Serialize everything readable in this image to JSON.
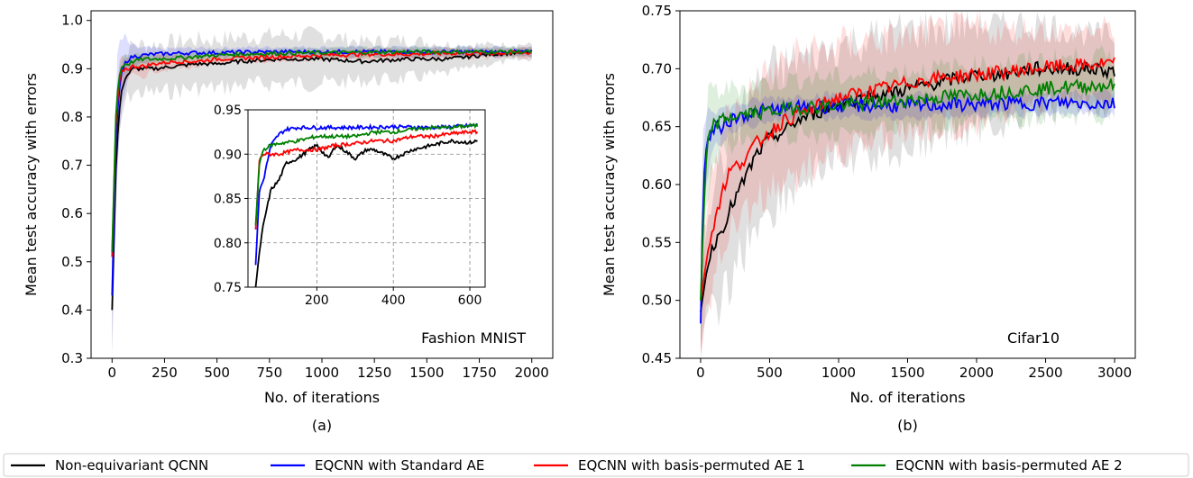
{
  "series_colors": {
    "non_equivariant": "#000000",
    "standard_ae": "#0000ff",
    "basis_permuted_ae1": "#ff0000",
    "basis_permuted_ae2": "#008000"
  },
  "legend": {
    "placement": "bottom",
    "entries": [
      {
        "label": "Non-equivariant QCNN",
        "key": "non_equivariant"
      },
      {
        "label": "EQCNN with Standard AE",
        "key": "standard_ae"
      },
      {
        "label": "EQCNN with basis-permuted AE 1",
        "key": "basis_permuted_ae1"
      },
      {
        "label": "EQCNN with basis-permuted AE 2",
        "key": "basis_permuted_ae2"
      }
    ]
  },
  "chart_data": [
    {
      "type": "line",
      "panel_label": "(a)",
      "annotation": "Fashion MNIST",
      "xlabel": "No. of iterations",
      "ylabel": "Mean test accuracy with errors",
      "xlim": [
        -100,
        2100
      ],
      "ylim": [
        0.3,
        1.02
      ],
      "xticks": [
        0,
        250,
        500,
        750,
        1000,
        1250,
        1500,
        1750,
        2000
      ],
      "yticks": [
        0.3,
        0.4,
        0.5,
        0.6,
        0.7,
        0.8,
        0.9,
        1.0
      ],
      "grid": false,
      "series": [
        {
          "key": "non_equivariant",
          "x": [
            0,
            20,
            40,
            60,
            80,
            100,
            150,
            200,
            300,
            400,
            500,
            600,
            800,
            1000,
            1200,
            1400,
            1600,
            1800,
            2000
          ],
          "y": [
            0.4,
            0.72,
            0.84,
            0.88,
            0.89,
            0.9,
            0.9,
            0.9,
            0.905,
            0.91,
            0.91,
            0.915,
            0.92,
            0.92,
            0.915,
            0.92,
            0.92,
            0.93,
            0.935
          ],
          "band": [
            0.1,
            0.08,
            0.06,
            0.05,
            0.05,
            0.05,
            0.05,
            0.05,
            0.05,
            0.05,
            0.05,
            0.05,
            0.05,
            0.05,
            0.04,
            0.04,
            0.03,
            0.02,
            0.015
          ]
        },
        {
          "key": "standard_ae",
          "x": [
            0,
            20,
            40,
            60,
            80,
            100,
            150,
            200,
            300,
            400,
            500,
            600,
            800,
            1000,
            1200,
            1400,
            1600,
            1800,
            2000
          ],
          "y": [
            0.43,
            0.78,
            0.88,
            0.91,
            0.92,
            0.925,
            0.928,
            0.93,
            0.932,
            0.933,
            0.933,
            0.934,
            0.935,
            0.935,
            0.935,
            0.935,
            0.935,
            0.935,
            0.935
          ],
          "band": [
            0.12,
            0.1,
            0.08,
            0.05,
            0.03,
            0.02,
            0.015,
            0.012,
            0.01,
            0.01,
            0.01,
            0.01,
            0.01,
            0.01,
            0.01,
            0.01,
            0.01,
            0.01,
            0.01
          ]
        },
        {
          "key": "basis_permuted_ae1",
          "x": [
            0,
            20,
            40,
            60,
            80,
            100,
            150,
            200,
            300,
            400,
            500,
            600,
            800,
            1000,
            1200,
            1400,
            1600,
            1800,
            2000
          ],
          "y": [
            0.51,
            0.81,
            0.89,
            0.9,
            0.9,
            0.905,
            0.905,
            0.91,
            0.915,
            0.915,
            0.92,
            0.922,
            0.925,
            0.928,
            0.93,
            0.93,
            0.932,
            0.932,
            0.933
          ],
          "band": [
            0.06,
            0.05,
            0.04,
            0.03,
            0.02,
            0.02,
            0.02,
            0.015,
            0.015,
            0.012,
            0.012,
            0.01,
            0.01,
            0.01,
            0.01,
            0.01,
            0.01,
            0.01,
            0.01
          ]
        },
        {
          "key": "basis_permuted_ae2",
          "x": [
            0,
            20,
            40,
            60,
            80,
            100,
            150,
            200,
            300,
            400,
            500,
            600,
            800,
            1000,
            1200,
            1400,
            1600,
            1800,
            2000
          ],
          "y": [
            0.52,
            0.83,
            0.9,
            0.91,
            0.91,
            0.915,
            0.92,
            0.92,
            0.922,
            0.925,
            0.928,
            0.93,
            0.932,
            0.933,
            0.934,
            0.935,
            0.935,
            0.935,
            0.935
          ],
          "band": [
            0.05,
            0.04,
            0.03,
            0.02,
            0.015,
            0.012,
            0.01,
            0.01,
            0.01,
            0.01,
            0.01,
            0.01,
            0.01,
            0.01,
            0.01,
            0.01,
            0.01,
            0.01,
            0.01
          ]
        }
      ],
      "inset": {
        "xlim": [
          20,
          640
        ],
        "ylim": [
          0.75,
          0.95
        ],
        "xticks": [
          200,
          400,
          600
        ],
        "yticks": [
          0.75,
          0.8,
          0.85,
          0.9,
          0.95
        ],
        "grid": true,
        "series": [
          {
            "key": "non_equivariant",
            "x": [
              40,
              50,
              60,
              70,
              80,
              100,
              120,
              150,
              180,
              200,
              230,
              250,
              270,
              300,
              330,
              350,
              400,
              450,
              500,
              550,
              600,
              620
            ],
            "y": [
              0.75,
              0.79,
              0.82,
              0.84,
              0.86,
              0.87,
              0.89,
              0.895,
              0.905,
              0.91,
              0.895,
              0.91,
              0.905,
              0.895,
              0.905,
              0.905,
              0.895,
              0.905,
              0.91,
              0.915,
              0.913,
              0.915
            ]
          },
          {
            "key": "standard_ae",
            "x": [
              40,
              50,
              60,
              70,
              80,
              100,
              120,
              150,
              200,
              250,
              300,
              400,
              500,
              600,
              620
            ],
            "y": [
              0.775,
              0.86,
              0.87,
              0.89,
              0.91,
              0.922,
              0.928,
              0.93,
              0.93,
              0.93,
              0.93,
              0.931,
              0.93,
              0.932,
              0.933
            ]
          },
          {
            "key": "basis_permuted_ae1",
            "x": [
              40,
              50,
              60,
              80,
              100,
              150,
              200,
              250,
              300,
              350,
              400,
              450,
              500,
              550,
              600,
              620
            ],
            "y": [
              0.815,
              0.895,
              0.9,
              0.9,
              0.9,
              0.905,
              0.905,
              0.91,
              0.912,
              0.915,
              0.915,
              0.92,
              0.92,
              0.923,
              0.925,
              0.925
            ]
          },
          {
            "key": "basis_permuted_ae2",
            "x": [
              40,
              50,
              60,
              80,
              100,
              150,
              200,
              250,
              300,
              350,
              400,
              450,
              500,
              550,
              600,
              620
            ],
            "y": [
              0.82,
              0.89,
              0.905,
              0.91,
              0.912,
              0.915,
              0.92,
              0.92,
              0.92,
              0.925,
              0.925,
              0.928,
              0.93,
              0.93,
              0.932,
              0.932
            ]
          }
        ]
      }
    },
    {
      "type": "line",
      "panel_label": "(b)",
      "annotation": "Cifar10",
      "xlabel": "No. of iterations",
      "ylabel": "Mean test accuracy with errors",
      "xlim": [
        -150,
        3150
      ],
      "ylim": [
        0.45,
        0.75
      ],
      "xticks": [
        0,
        500,
        1000,
        1500,
        2000,
        2500,
        3000
      ],
      "yticks": [
        0.45,
        0.5,
        0.55,
        0.6,
        0.65,
        0.7,
        0.75
      ],
      "grid": false,
      "series": [
        {
          "key": "non_equivariant",
          "x": [
            0,
            50,
            100,
            150,
            200,
            300,
            400,
            500,
            600,
            700,
            800,
            900,
            1000,
            1200,
            1400,
            1600,
            1800,
            2000,
            2200,
            2400,
            2600,
            2800,
            3000
          ],
          "y": [
            0.49,
            0.53,
            0.55,
            0.56,
            0.575,
            0.6,
            0.625,
            0.64,
            0.645,
            0.655,
            0.66,
            0.665,
            0.67,
            0.675,
            0.68,
            0.685,
            0.69,
            0.695,
            0.695,
            0.7,
            0.7,
            0.7,
            0.698
          ],
          "band": [
            0.04,
            0.05,
            0.06,
            0.06,
            0.06,
            0.06,
            0.06,
            0.06,
            0.055,
            0.055,
            0.05,
            0.05,
            0.05,
            0.05,
            0.05,
            0.05,
            0.045,
            0.045,
            0.04,
            0.04,
            0.035,
            0.03,
            0.03
          ]
        },
        {
          "key": "standard_ae",
          "x": [
            0,
            20,
            40,
            60,
            80,
            100,
            150,
            200,
            300,
            400,
            500,
            600,
            800,
            1000,
            1200,
            1400,
            1600,
            1800,
            2000,
            2200,
            2400,
            2600,
            2800,
            3000
          ],
          "y": [
            0.48,
            0.6,
            0.63,
            0.64,
            0.645,
            0.648,
            0.65,
            0.655,
            0.66,
            0.662,
            0.665,
            0.665,
            0.667,
            0.668,
            0.668,
            0.668,
            0.668,
            0.669,
            0.669,
            0.67,
            0.67,
            0.671,
            0.67,
            0.67
          ],
          "band": [
            0.05,
            0.05,
            0.04,
            0.03,
            0.025,
            0.02,
            0.015,
            0.012,
            0.01,
            0.01,
            0.01,
            0.01,
            0.01,
            0.01,
            0.01,
            0.01,
            0.01,
            0.01,
            0.01,
            0.01,
            0.01,
            0.01,
            0.01,
            0.01
          ]
        },
        {
          "key": "basis_permuted_ae1",
          "x": [
            0,
            50,
            100,
            150,
            200,
            300,
            400,
            500,
            600,
            700,
            800,
            900,
            1000,
            1200,
            1400,
            1600,
            1800,
            2000,
            2200,
            2400,
            2600,
            2800,
            3000
          ],
          "y": [
            0.5,
            0.54,
            0.57,
            0.59,
            0.61,
            0.62,
            0.635,
            0.645,
            0.655,
            0.66,
            0.665,
            0.67,
            0.675,
            0.68,
            0.685,
            0.69,
            0.693,
            0.695,
            0.697,
            0.7,
            0.702,
            0.703,
            0.705
          ],
          "band": [
            0.04,
            0.05,
            0.05,
            0.05,
            0.05,
            0.05,
            0.05,
            0.05,
            0.05,
            0.05,
            0.05,
            0.045,
            0.045,
            0.045,
            0.04,
            0.04,
            0.04,
            0.04,
            0.035,
            0.035,
            0.03,
            0.03,
            0.03
          ]
        },
        {
          "key": "basis_permuted_ae2",
          "x": [
            0,
            20,
            40,
            60,
            80,
            100,
            150,
            200,
            300,
            400,
            500,
            600,
            800,
            1000,
            1200,
            1400,
            1600,
            1800,
            2000,
            2200,
            2400,
            2600,
            2800,
            3000
          ],
          "y": [
            0.5,
            0.57,
            0.62,
            0.64,
            0.65,
            0.652,
            0.655,
            0.658,
            0.66,
            0.662,
            0.663,
            0.665,
            0.667,
            0.668,
            0.67,
            0.672,
            0.674,
            0.676,
            0.678,
            0.68,
            0.682,
            0.684,
            0.685,
            0.686
          ],
          "band": [
            0.05,
            0.05,
            0.04,
            0.035,
            0.03,
            0.03,
            0.025,
            0.025,
            0.025,
            0.025,
            0.025,
            0.025,
            0.025,
            0.025,
            0.025,
            0.025,
            0.025,
            0.025,
            0.025,
            0.025,
            0.025,
            0.025,
            0.025,
            0.025
          ]
        }
      ]
    }
  ]
}
